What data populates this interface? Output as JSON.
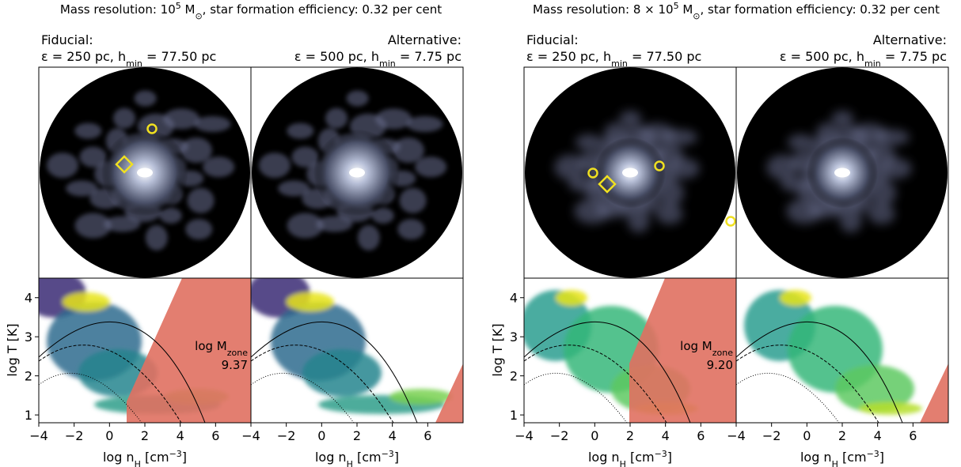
{
  "figures": [
    {
      "title": [
        {
          "text": "Mass resolution: 10"
        },
        {
          "sup": "5"
        },
        {
          "text": " M"
        },
        {
          "sub": "⊙"
        },
        {
          "text": ", star formation efficiency: 0.32 per cent"
        }
      ],
      "fiducial": {
        "heading": "Fiducial:",
        "params": [
          {
            "text": "ε = 250 pc, h"
          },
          {
            "sub": "min"
          },
          {
            "text": " = 77.50 pc"
          }
        ]
      },
      "alternative": {
        "heading": "Alternative:",
        "params": [
          {
            "text": "ε = 500 pc, h"
          },
          {
            "sub": "min"
          },
          {
            "text": " = 7.75 pc"
          }
        ]
      },
      "annotation": {
        "label": [
          {
            "text": "log M"
          },
          {
            "sub": "zone"
          }
        ],
        "value": "9.37"
      }
    },
    {
      "title": [
        {
          "text": "Mass resolution: 8 × 10"
        },
        {
          "sup": "5"
        },
        {
          "text": " M"
        },
        {
          "sub": "⊙"
        },
        {
          "text": ", star formation efficiency: 0.32 per cent"
        }
      ],
      "fiducial": {
        "heading": "Fiducial:",
        "params": [
          {
            "text": "ε = 250 pc, h"
          },
          {
            "sub": "min"
          },
          {
            "text": " = 77.50 pc"
          }
        ]
      },
      "alternative": {
        "heading": "Alternative:",
        "params": [
          {
            "text": "ε = 500 pc, h"
          },
          {
            "sub": "min"
          },
          {
            "text": " = 7.75 pc"
          }
        ]
      },
      "annotation": {
        "label": [
          {
            "text": "log M"
          },
          {
            "sub": "zone"
          }
        ],
        "value": "9.20"
      }
    }
  ],
  "axes": {
    "xlabel": [
      {
        "text": "log n"
      },
      {
        "sub": "H"
      },
      {
        "text": " [cm"
      },
      {
        "sup": "−3"
      },
      {
        "text": "]"
      }
    ],
    "ylabel": "log T [K]",
    "xlim": [
      -4,
      8
    ],
    "ylim": [
      0.8,
      4.5
    ],
    "xticks": [
      {
        "value": -4,
        "label": "−4"
      },
      {
        "value": -2,
        "label": "−2"
      },
      0,
      2,
      4,
      6
    ],
    "yticks": [
      1,
      2,
      3,
      4
    ]
  }
}
